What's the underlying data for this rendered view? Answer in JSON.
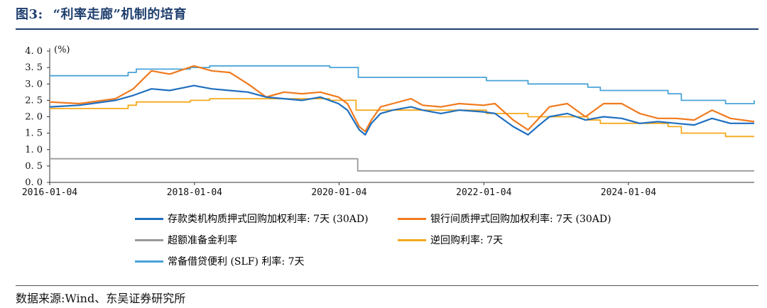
{
  "figure": {
    "label": "图3:",
    "title": "“利率走廊”机制的培育",
    "source": "数据来源:Wind、东吴证券研究所"
  },
  "chart_data": {
    "type": "line",
    "unit_label": "(%)",
    "ylim": [
      0.0,
      4.0
    ],
    "y_ticks": [
      "4. 0",
      "3. 5",
      "3. 0",
      "2. 5",
      "2. 0",
      "1. 5",
      "1. 0",
      "0. 5",
      "0. 0"
    ],
    "y_tick_values": [
      4.0,
      3.5,
      3.0,
      2.5,
      2.0,
      1.5,
      1.0,
      0.5,
      0.0
    ],
    "xlim": [
      "2016-01-04",
      "2025-09-30"
    ],
    "x_ticks": [
      "2016-01-04",
      "2018-01-04",
      "2020-01-04",
      "2022-01-04",
      "2024-01-04"
    ],
    "grid": false,
    "legend_placement": "bottom",
    "series": [
      {
        "name": "存款类机构质押式回购加权利率: 7天 (30AD)",
        "color": "#1f6fc0",
        "points": [
          [
            "2016-01-04",
            2.3
          ],
          [
            "2016-06-01",
            2.35
          ],
          [
            "2016-12-01",
            2.5
          ],
          [
            "2017-03-01",
            2.65
          ],
          [
            "2017-06-01",
            2.85
          ],
          [
            "2017-09-01",
            2.8
          ],
          [
            "2018-01-01",
            2.95
          ],
          [
            "2018-04-01",
            2.85
          ],
          [
            "2018-07-01",
            2.8
          ],
          [
            "2018-10-01",
            2.75
          ],
          [
            "2019-01-01",
            2.6
          ],
          [
            "2019-04-01",
            2.55
          ],
          [
            "2019-07-01",
            2.5
          ],
          [
            "2019-10-01",
            2.6
          ],
          [
            "2020-01-01",
            2.4
          ],
          [
            "2020-02-15",
            2.2
          ],
          [
            "2020-04-15",
            1.6
          ],
          [
            "2020-05-15",
            1.45
          ],
          [
            "2020-06-15",
            1.8
          ],
          [
            "2020-08-01",
            2.1
          ],
          [
            "2020-10-01",
            2.2
          ],
          [
            "2021-01-01",
            2.3
          ],
          [
            "2021-03-01",
            2.2
          ],
          [
            "2021-06-01",
            2.1
          ],
          [
            "2021-09-01",
            2.2
          ],
          [
            "2022-01-01",
            2.15
          ],
          [
            "2022-03-01",
            2.1
          ],
          [
            "2022-06-01",
            1.7
          ],
          [
            "2022-08-15",
            1.45
          ],
          [
            "2022-10-01",
            1.7
          ],
          [
            "2022-12-01",
            2.0
          ],
          [
            "2023-03-01",
            2.1
          ],
          [
            "2023-06-01",
            1.9
          ],
          [
            "2023-09-01",
            2.0
          ],
          [
            "2023-12-01",
            1.95
          ],
          [
            "2024-03-01",
            1.8
          ],
          [
            "2024-06-01",
            1.85
          ],
          [
            "2024-09-01",
            1.8
          ],
          [
            "2024-12-01",
            1.75
          ],
          [
            "2025-03-01",
            1.95
          ],
          [
            "2025-06-01",
            1.8
          ],
          [
            "2025-09-30",
            1.8
          ]
        ]
      },
      {
        "name": "银行间质押式回购加权利率: 7天 (30AD)",
        "color": "#f07a1e",
        "points": [
          [
            "2016-01-04",
            2.45
          ],
          [
            "2016-06-01",
            2.4
          ],
          [
            "2016-12-01",
            2.55
          ],
          [
            "2017-03-01",
            2.85
          ],
          [
            "2017-06-01",
            3.4
          ],
          [
            "2017-09-01",
            3.3
          ],
          [
            "2018-01-01",
            3.55
          ],
          [
            "2018-04-01",
            3.4
          ],
          [
            "2018-07-01",
            3.35
          ],
          [
            "2018-10-01",
            3.0
          ],
          [
            "2019-01-01",
            2.6
          ],
          [
            "2019-04-01",
            2.75
          ],
          [
            "2019-07-01",
            2.7
          ],
          [
            "2019-10-01",
            2.75
          ],
          [
            "2020-01-01",
            2.6
          ],
          [
            "2020-02-15",
            2.4
          ],
          [
            "2020-04-15",
            1.7
          ],
          [
            "2020-05-15",
            1.55
          ],
          [
            "2020-06-15",
            1.9
          ],
          [
            "2020-08-01",
            2.3
          ],
          [
            "2020-10-01",
            2.4
          ],
          [
            "2021-01-01",
            2.55
          ],
          [
            "2021-03-01",
            2.35
          ],
          [
            "2021-06-01",
            2.3
          ],
          [
            "2021-09-01",
            2.4
          ],
          [
            "2022-01-01",
            2.35
          ],
          [
            "2022-03-01",
            2.4
          ],
          [
            "2022-06-01",
            1.9
          ],
          [
            "2022-08-15",
            1.6
          ],
          [
            "2022-10-01",
            1.9
          ],
          [
            "2022-12-01",
            2.3
          ],
          [
            "2023-03-01",
            2.4
          ],
          [
            "2023-06-01",
            2.0
          ],
          [
            "2023-09-01",
            2.4
          ],
          [
            "2023-12-01",
            2.4
          ],
          [
            "2024-03-01",
            2.1
          ],
          [
            "2024-06-01",
            1.95
          ],
          [
            "2024-09-01",
            1.95
          ],
          [
            "2024-12-01",
            1.9
          ],
          [
            "2025-03-01",
            2.2
          ],
          [
            "2025-06-01",
            1.95
          ],
          [
            "2025-09-30",
            1.85
          ]
        ]
      },
      {
        "name": "超额准备金利率",
        "color": "#9a9a9a",
        "step": true,
        "points": [
          [
            "2016-01-04",
            0.72
          ],
          [
            "2020-04-07",
            0.35
          ],
          [
            "2025-09-30",
            0.35
          ]
        ]
      },
      {
        "name": "逆回购利率: 7天",
        "color": "#f5a81c",
        "step": true,
        "points": [
          [
            "2016-01-04",
            2.25
          ],
          [
            "2017-02-03",
            2.35
          ],
          [
            "2017-03-16",
            2.45
          ],
          [
            "2017-12-14",
            2.5
          ],
          [
            "2018-03-22",
            2.55
          ],
          [
            "2019-11-18",
            2.5
          ],
          [
            "2020-03-30",
            2.2
          ],
          [
            "2022-01-17",
            2.1
          ],
          [
            "2022-08-15",
            2.0
          ],
          [
            "2023-06-13",
            1.9
          ],
          [
            "2023-08-15",
            1.8
          ],
          [
            "2024-07-22",
            1.7
          ],
          [
            "2024-09-27",
            1.5
          ],
          [
            "2025-05-08",
            1.4
          ],
          [
            "2025-09-30",
            1.4
          ]
        ]
      },
      {
        "name": "常备借贷便利 (SLF) 利率: 7天",
        "color": "#4aa3d8",
        "step": true,
        "points": [
          [
            "2016-01-04",
            3.25
          ],
          [
            "2017-02-03",
            3.35
          ],
          [
            "2017-03-16",
            3.45
          ],
          [
            "2017-12-14",
            3.5
          ],
          [
            "2018-03-22",
            3.55
          ],
          [
            "2019-11-18",
            3.5
          ],
          [
            "2020-04-10",
            3.2
          ],
          [
            "2022-01-17",
            3.1
          ],
          [
            "2022-08-15",
            3.0
          ],
          [
            "2023-06-13",
            2.9
          ],
          [
            "2023-08-15",
            2.8
          ],
          [
            "2024-07-22",
            2.7
          ],
          [
            "2024-09-27",
            2.5
          ],
          [
            "2025-05-08",
            2.4
          ],
          [
            "2025-09-30",
            2.5
          ]
        ]
      }
    ]
  }
}
